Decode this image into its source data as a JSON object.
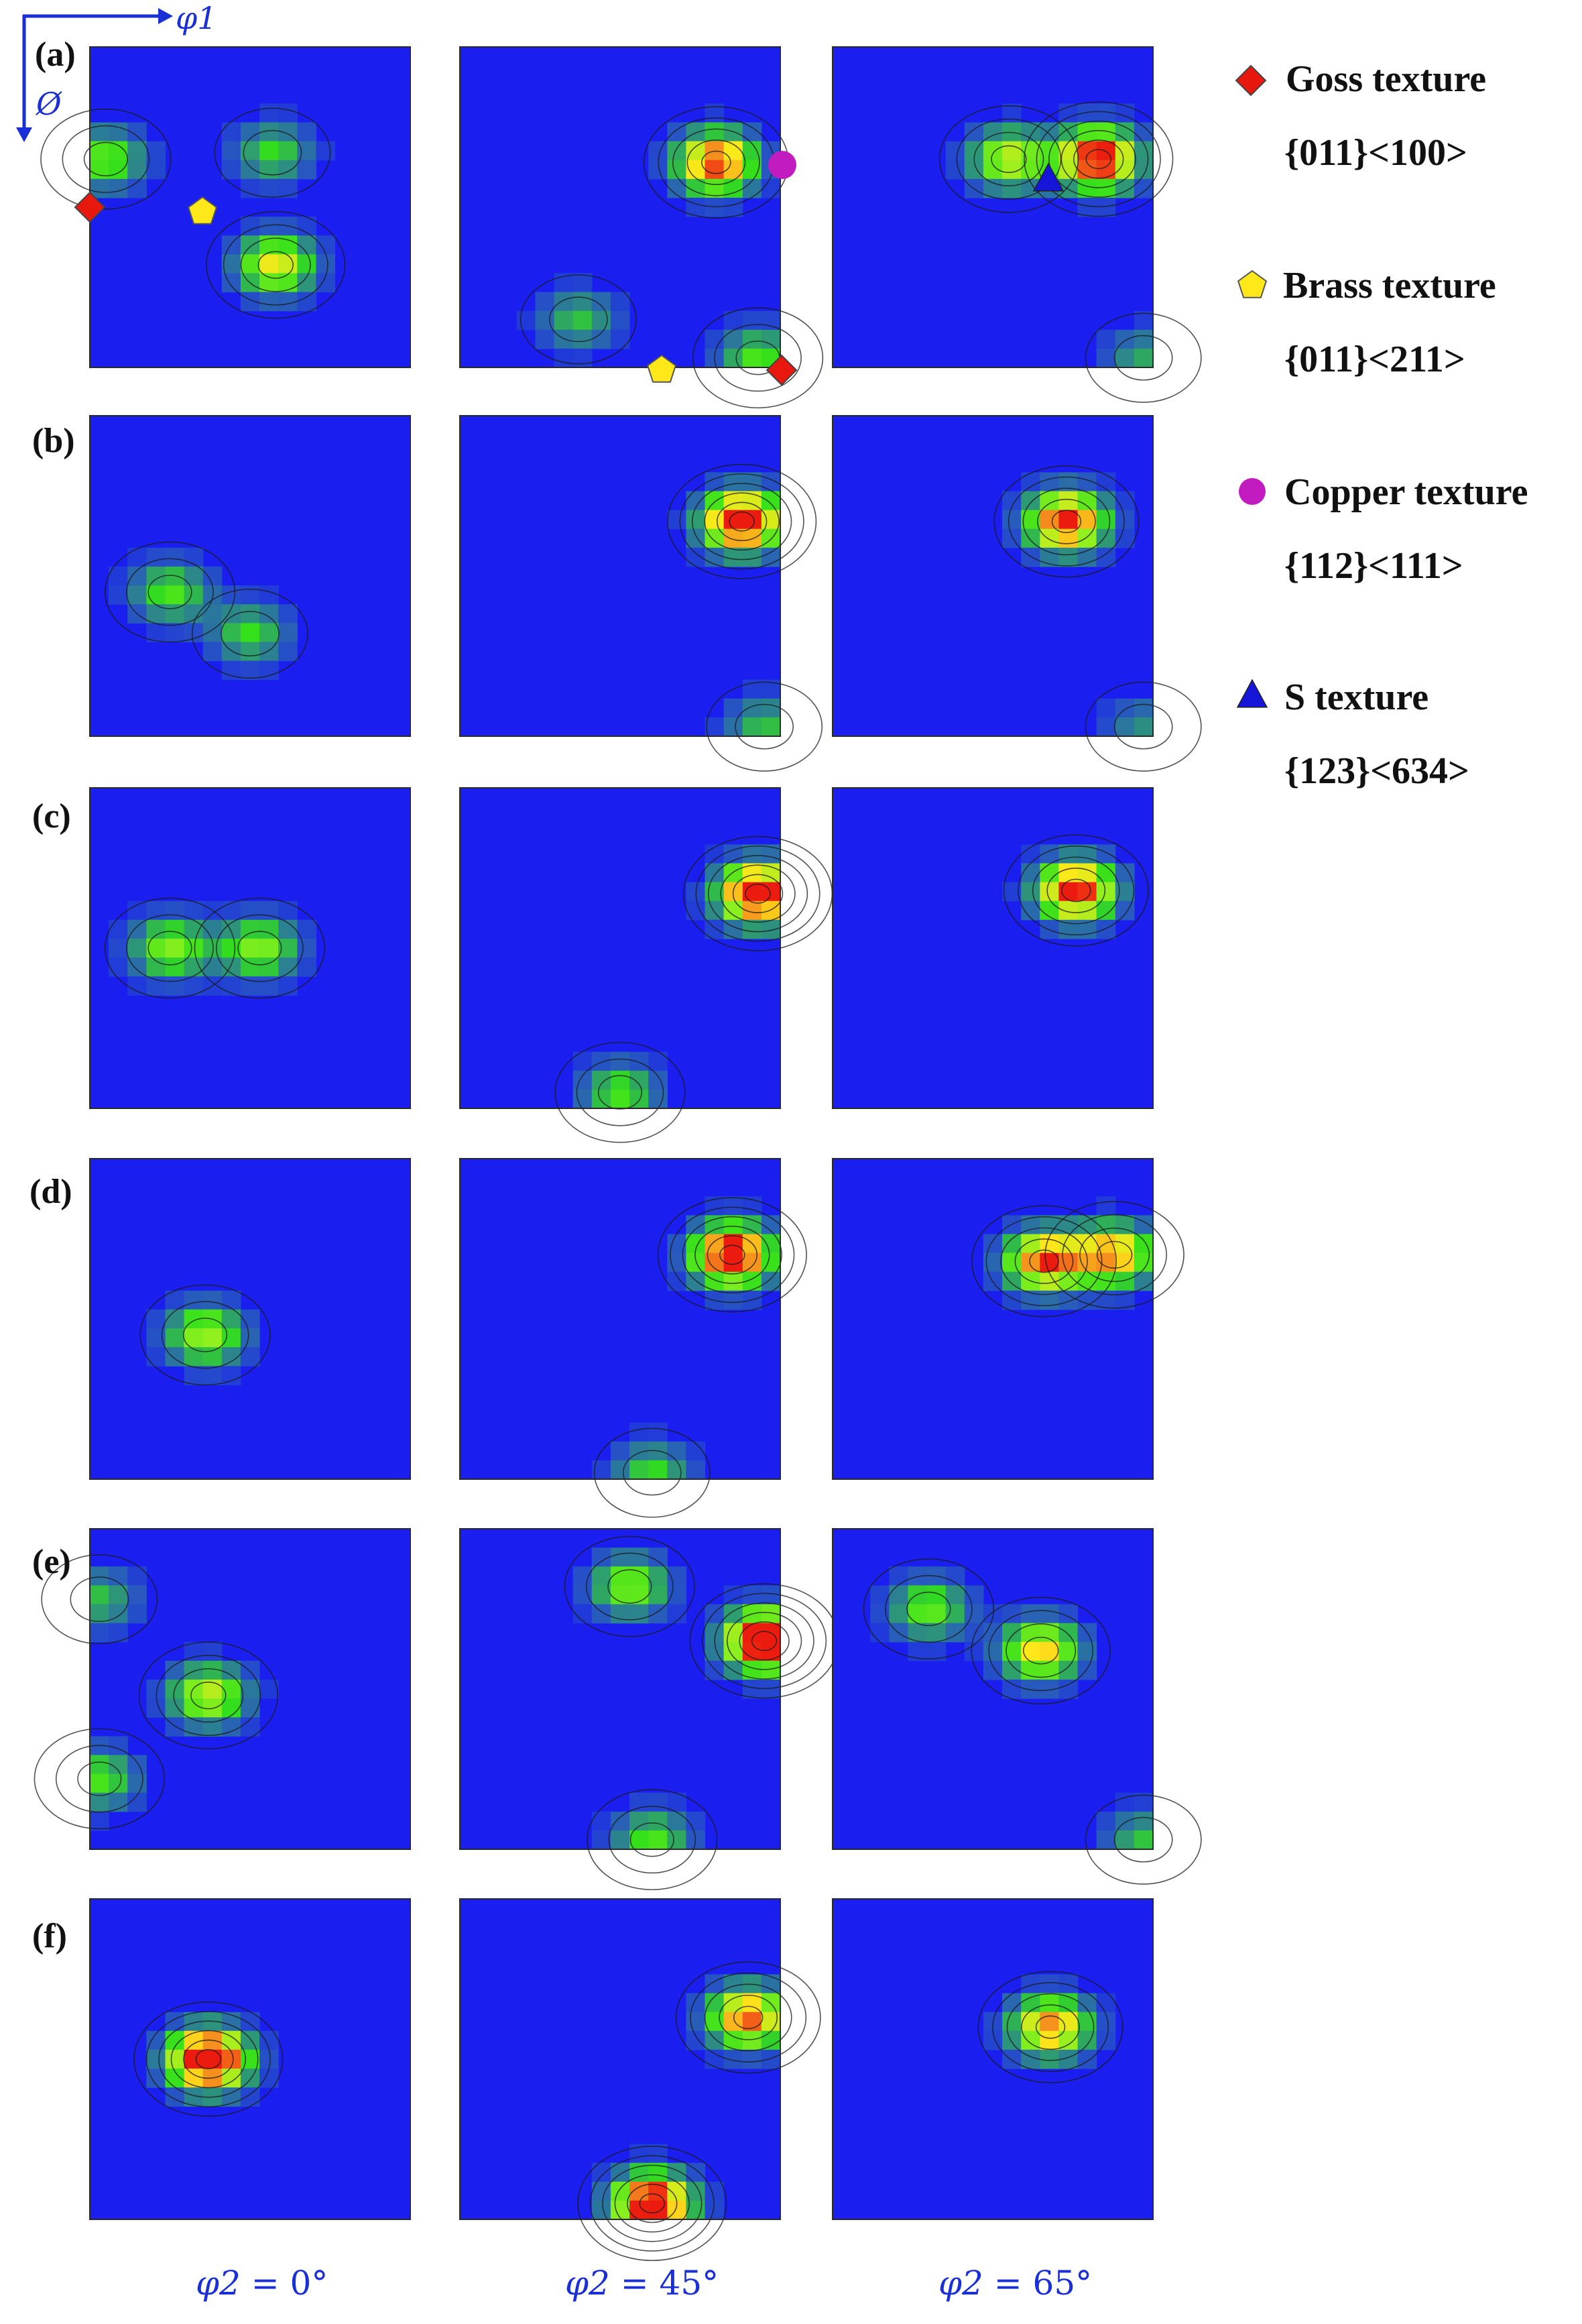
{
  "figure": {
    "axes": {
      "horizontal": "φ1",
      "vertical": "Ø"
    },
    "rows": [
      "(a)",
      "(b)",
      "(c)",
      "(d)",
      "(e)",
      "(f)"
    ],
    "columns": [
      {
        "symbol": "φ2",
        "value": "0°"
      },
      {
        "symbol": "φ2",
        "value": "45°"
      },
      {
        "symbol": "φ2",
        "value": "65°"
      }
    ],
    "legend": [
      {
        "name": "Goss texture",
        "miller": "{011}<100>",
        "marker": "diamond",
        "color": "#e8180f"
      },
      {
        "name": "Brass texture",
        "miller": "{011}<211>",
        "marker": "pentagon",
        "color": "#ffe81a"
      },
      {
        "name": "Copper texture",
        "miller": "{112}<111>",
        "marker": "circle",
        "color": "#c21bc0"
      },
      {
        "name": "S texture",
        "miller": "{123}<634>",
        "marker": "triangle",
        "color": "#1616d8"
      }
    ],
    "colors": {
      "background": "#1a1ff0",
      "low": "#2f6fb8",
      "mid": "#33e01a",
      "high": "#ffe81a",
      "peak": "#ec1b0f",
      "axis_blue": "#1a2fd6"
    },
    "texture_peaks": [
      [
        [
          {
            "u": 0.05,
            "v": 0.35,
            "i": 0.55
          },
          {
            "u": 0.58,
            "v": 0.68,
            "i": 0.75
          },
          {
            "u": 0.57,
            "v": 0.33,
            "i": 0.45
          }
        ],
        [
          {
            "u": 0.8,
            "v": 0.36,
            "i": 1.0
          },
          {
            "u": 0.93,
            "v": 0.97,
            "i": 0.5
          },
          {
            "u": 0.37,
            "v": 0.85,
            "i": 0.4
          }
        ],
        [
          {
            "u": 0.83,
            "v": 0.35,
            "i": 1.1
          },
          {
            "u": 0.55,
            "v": 0.35,
            "i": 0.7
          },
          {
            "u": 0.97,
            "v": 0.97,
            "i": 0.35
          }
        ]
      ],
      [
        [
          {
            "u": 0.25,
            "v": 0.55,
            "i": 0.5
          },
          {
            "u": 0.5,
            "v": 0.68,
            "i": 0.45
          }
        ],
        [
          {
            "u": 0.88,
            "v": 0.33,
            "i": 1.15
          },
          {
            "u": 0.95,
            "v": 0.97,
            "i": 0.4
          }
        ],
        [
          {
            "u": 0.73,
            "v": 0.33,
            "i": 1.05
          },
          {
            "u": 0.97,
            "v": 0.97,
            "i": 0.3
          }
        ]
      ],
      [
        [
          {
            "u": 0.25,
            "v": 0.5,
            "i": 0.6
          },
          {
            "u": 0.53,
            "v": 0.5,
            "i": 0.6
          }
        ],
        [
          {
            "u": 0.93,
            "v": 0.33,
            "i": 1.15
          },
          {
            "u": 0.5,
            "v": 0.95,
            "i": 0.5
          }
        ],
        [
          {
            "u": 0.76,
            "v": 0.32,
            "i": 1.05
          }
        ]
      ],
      [
        [
          {
            "u": 0.36,
            "v": 0.55,
            "i": 0.65
          }
        ],
        [
          {
            "u": 0.85,
            "v": 0.3,
            "i": 1.15
          },
          {
            "u": 0.6,
            "v": 0.98,
            "i": 0.45
          }
        ],
        [
          {
            "u": 0.66,
            "v": 0.32,
            "i": 0.95
          },
          {
            "u": 0.88,
            "v": 0.3,
            "i": 0.85
          }
        ]
      ],
      [
        [
          {
            "u": 0.37,
            "v": 0.52,
            "i": 0.7
          },
          {
            "u": 0.03,
            "v": 0.78,
            "i": 0.5
          },
          {
            "u": 0.03,
            "v": 0.22,
            "i": 0.4
          }
        ],
        [
          {
            "u": 0.95,
            "v": 0.35,
            "i": 1.2
          },
          {
            "u": 0.53,
            "v": 0.18,
            "i": 0.6
          },
          {
            "u": 0.6,
            "v": 0.97,
            "i": 0.5
          }
        ],
        [
          {
            "u": 0.65,
            "v": 0.38,
            "i": 0.8
          },
          {
            "u": 0.3,
            "v": 0.25,
            "i": 0.55
          },
          {
            "u": 0.97,
            "v": 0.97,
            "i": 0.4
          }
        ]
      ],
      [
        [
          {
            "u": 0.37,
            "v": 0.5,
            "i": 1.25
          }
        ],
        [
          {
            "u": 0.9,
            "v": 0.37,
            "i": 0.95
          },
          {
            "u": 0.6,
            "v": 0.95,
            "i": 1.15
          }
        ],
        [
          {
            "u": 0.68,
            "v": 0.4,
            "i": 0.9
          }
        ]
      ]
    ]
  }
}
